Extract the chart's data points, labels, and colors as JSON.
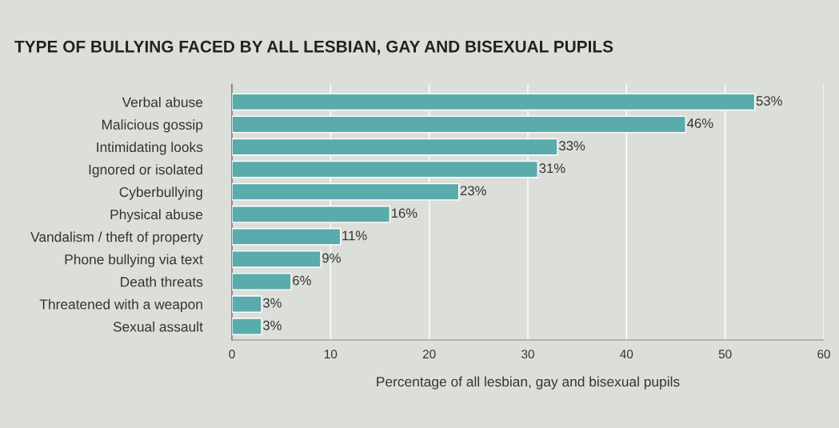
{
  "chart_data": {
    "type": "bar",
    "orientation": "horizontal",
    "title": "TYPE OF BULLYING FACED BY ALL LESBIAN, GAY AND BISEXUAL PUPILS",
    "xlabel": "Percentage of all lesbian, gay and bisexual pupils",
    "categories": [
      "Verbal abuse",
      "Malicious gossip",
      "Intimidating looks",
      "Ignored or isolated",
      "Cyberbullying",
      "Physical abuse",
      "Vandalism / theft of property",
      "Phone bullying via text",
      "Death threats",
      "Threatened with a weapon",
      "Sexual assault"
    ],
    "values": [
      53,
      46,
      33,
      31,
      23,
      16,
      11,
      9,
      6,
      3,
      3
    ],
    "value_labels": [
      "53%",
      "46%",
      "33%",
      "31%",
      "23%",
      "16%",
      "11%",
      "9%",
      "6%",
      "3%",
      "3%"
    ],
    "color": "#5aabab",
    "xlim": [
      0,
      60
    ],
    "xticks": [
      0,
      10,
      20,
      30,
      40,
      50,
      60
    ],
    "grid": "x",
    "legend": false
  }
}
